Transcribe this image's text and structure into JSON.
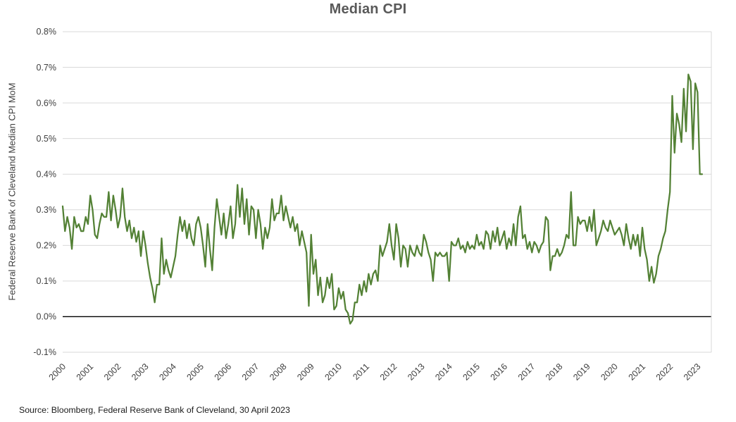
{
  "header": {
    "title": "Median CPI"
  },
  "footer": {
    "source": "Source: Bloomberg, Federal Reserve Bank of Cleveland, 30 April 2023"
  },
  "colors": {
    "line": "#538135",
    "grid": "#d9d9d9",
    "zero_line": "#000000",
    "title_text": "#595959",
    "axis_text": "#404040",
    "background": "#ffffff"
  },
  "chart_data": {
    "type": "line",
    "title": "Median CPI",
    "xlabel": "",
    "ylabel": "Federal Reserve Bank of Cleveland Median CPI MoM",
    "legend": "none",
    "grid": "horizontal",
    "x_start": "2000-01",
    "x_end": "2023-03",
    "x_frequency": "monthly",
    "xlim_years": [
      2000,
      2023.5
    ],
    "ylim": [
      -0.1,
      0.8
    ],
    "y_tick_labels": [
      "0.8%",
      "0.7%",
      "0.6%",
      "0.5%",
      "0.4%",
      "0.3%",
      "0.2%",
      "0.1%",
      "0.0%",
      "-0.1%"
    ],
    "y_tick_values": [
      0.8,
      0.7,
      0.6,
      0.5,
      0.4,
      0.3,
      0.2,
      0.1,
      0.0,
      -0.1
    ],
    "x_tick_labels": [
      "2000",
      "2001",
      "2002",
      "2003",
      "2004",
      "2005",
      "2006",
      "2007",
      "2008",
      "2009",
      "2010",
      "2011",
      "2012",
      "2013",
      "2014",
      "2015",
      "2016",
      "2017",
      "2018",
      "2019",
      "2020",
      "2021",
      "2022",
      "2023"
    ],
    "series_name": "Median CPI MoM (%)",
    "values_pct_mom": [
      0.31,
      0.24,
      0.28,
      0.25,
      0.19,
      0.28,
      0.25,
      0.26,
      0.24,
      0.24,
      0.28,
      0.26,
      0.34,
      0.3,
      0.23,
      0.22,
      0.26,
      0.29,
      0.28,
      0.28,
      0.35,
      0.27,
      0.34,
      0.3,
      0.25,
      0.28,
      0.36,
      0.28,
      0.24,
      0.27,
      0.22,
      0.25,
      0.21,
      0.24,
      0.17,
      0.24,
      0.2,
      0.15,
      0.11,
      0.08,
      0.04,
      0.09,
      0.09,
      0.22,
      0.12,
      0.16,
      0.13,
      0.11,
      0.14,
      0.17,
      0.23,
      0.28,
      0.24,
      0.27,
      0.22,
      0.26,
      0.22,
      0.2,
      0.26,
      0.28,
      0.25,
      0.2,
      0.14,
      0.26,
      0.19,
      0.13,
      0.25,
      0.33,
      0.28,
      0.23,
      0.29,
      0.22,
      0.26,
      0.31,
      0.22,
      0.26,
      0.37,
      0.28,
      0.36,
      0.26,
      0.33,
      0.23,
      0.31,
      0.3,
      0.22,
      0.3,
      0.26,
      0.19,
      0.25,
      0.22,
      0.25,
      0.33,
      0.27,
      0.29,
      0.29,
      0.34,
      0.27,
      0.31,
      0.28,
      0.25,
      0.28,
      0.24,
      0.26,
      0.2,
      0.24,
      0.21,
      0.18,
      0.03,
      0.23,
      0.12,
      0.16,
      0.06,
      0.11,
      0.04,
      0.06,
      0.11,
      0.08,
      0.12,
      0.02,
      0.03,
      0.08,
      0.05,
      0.07,
      0.02,
      0.01,
      -0.02,
      -0.01,
      0.04,
      0.04,
      0.09,
      0.06,
      0.1,
      0.07,
      0.12,
      0.09,
      0.12,
      0.13,
      0.1,
      0.2,
      0.17,
      0.19,
      0.21,
      0.26,
      0.2,
      0.16,
      0.26,
      0.22,
      0.14,
      0.2,
      0.19,
      0.14,
      0.2,
      0.18,
      0.17,
      0.2,
      0.18,
      0.17,
      0.23,
      0.21,
      0.18,
      0.16,
      0.1,
      0.18,
      0.17,
      0.18,
      0.17,
      0.17,
      0.18,
      0.1,
      0.21,
      0.2,
      0.2,
      0.22,
      0.19,
      0.2,
      0.18,
      0.21,
      0.19,
      0.2,
      0.19,
      0.23,
      0.2,
      0.21,
      0.19,
      0.24,
      0.23,
      0.19,
      0.24,
      0.21,
      0.25,
      0.2,
      0.22,
      0.24,
      0.19,
      0.22,
      0.2,
      0.26,
      0.2,
      0.28,
      0.31,
      0.22,
      0.23,
      0.19,
      0.21,
      0.18,
      0.21,
      0.2,
      0.18,
      0.2,
      0.21,
      0.28,
      0.27,
      0.13,
      0.17,
      0.17,
      0.19,
      0.17,
      0.18,
      0.2,
      0.23,
      0.22,
      0.35,
      0.2,
      0.2,
      0.28,
      0.26,
      0.27,
      0.27,
      0.24,
      0.28,
      0.24,
      0.3,
      0.2,
      0.22,
      0.24,
      0.27,
      0.25,
      0.24,
      0.27,
      0.25,
      0.23,
      0.24,
      0.25,
      0.23,
      0.2,
      0.26,
      0.22,
      0.19,
      0.23,
      0.2,
      0.23,
      0.17,
      0.25,
      0.19,
      0.16,
      0.1,
      0.14,
      0.095,
      0.12,
      0.17,
      0.19,
      0.22,
      0.24,
      0.3,
      0.35,
      0.62,
      0.46,
      0.57,
      0.54,
      0.49,
      0.64,
      0.52,
      0.68,
      0.66,
      0.47,
      0.655,
      0.63,
      0.4,
      0.4
    ]
  }
}
